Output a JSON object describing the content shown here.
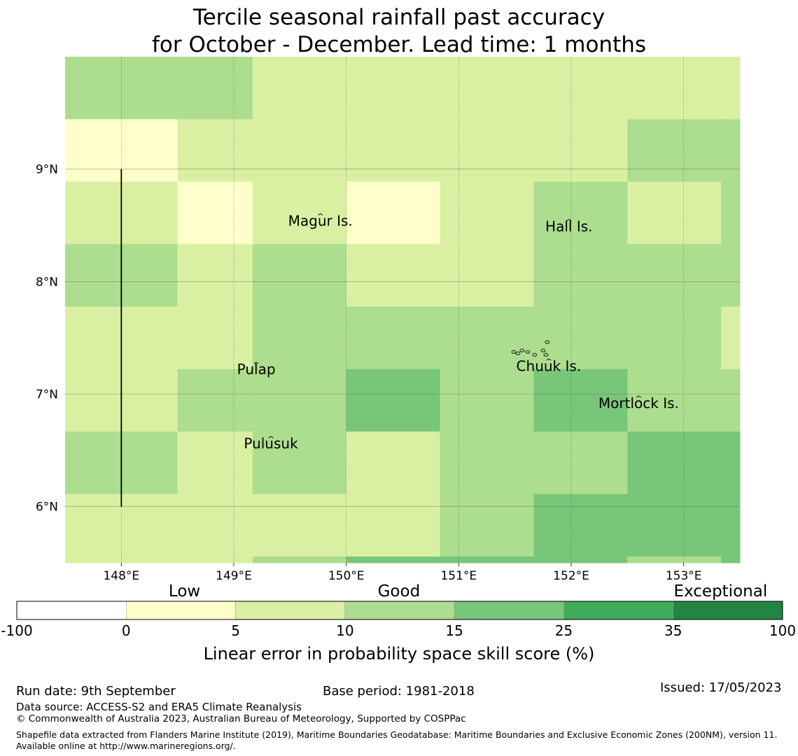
{
  "title": {
    "line1": "Tercile seasonal rainfall past accuracy",
    "line2": "for October - December. Lead time: 1 months"
  },
  "map": {
    "lon_range": [
      147.5,
      153.5
    ],
    "lat_range": [
      5.5,
      10.0
    ],
    "x_ticks": [
      {
        "value": 148,
        "label": "148°E"
      },
      {
        "value": 149,
        "label": "149°E"
      },
      {
        "value": 150,
        "label": "150°E"
      },
      {
        "value": 151,
        "label": "151°E"
      },
      {
        "value": 152,
        "label": "152°E"
      },
      {
        "value": 153,
        "label": "153°E"
      }
    ],
    "y_ticks": [
      {
        "value": 9,
        "label": "9°N"
      },
      {
        "value": 8,
        "label": "8°N"
      },
      {
        "value": 7,
        "label": "7°N"
      },
      {
        "value": 6,
        "label": "6°N"
      }
    ],
    "grid": true,
    "grid_color": "#555555",
    "col_edges": [
      147.5,
      147.667,
      148.5,
      149.167,
      150.0,
      150.833,
      151.667,
      152.5,
      153.333,
      153.5
    ],
    "row_edges": [
      10.0,
      9.444,
      8.889,
      8.333,
      7.778,
      7.222,
      6.667,
      6.111,
      5.556,
      5.5
    ],
    "cells": [
      [
        "10-15",
        "10-15",
        "10-15",
        "5-10",
        "5-10",
        "5-10",
        "5-10",
        "5-10",
        "5-10"
      ],
      [
        "0-5",
        "0-5",
        "5-10",
        "5-10",
        "5-10",
        "5-10",
        "5-10",
        "10-15",
        "10-15"
      ],
      [
        "5-10",
        "5-10",
        "0-5",
        "5-10",
        "0-5",
        "5-10",
        "10-15",
        "5-10",
        "10-15"
      ],
      [
        "10-15",
        "10-15",
        "5-10",
        "10-15",
        "5-10",
        "5-10",
        "10-15",
        "10-15",
        "10-15"
      ],
      [
        "5-10",
        "5-10",
        "5-10",
        "10-15",
        "10-15",
        "10-15",
        "10-15",
        "10-15",
        "5-10"
      ],
      [
        "5-10",
        "5-10",
        "10-15",
        "10-15",
        "15-25",
        "10-15",
        "15-25",
        "10-15",
        "10-15"
      ],
      [
        "10-15",
        "10-15",
        "5-10",
        "10-15",
        "5-10",
        "10-15",
        "10-15",
        "15-25",
        "15-25"
      ],
      [
        "5-10",
        "5-10",
        "5-10",
        "5-10",
        "5-10",
        "10-15",
        "15-25",
        "15-25",
        "15-25"
      ],
      [
        "5-10",
        "5-10",
        "5-10",
        "10-15",
        "15-25",
        "15-25",
        "15-25",
        "10-15",
        "15-25"
      ]
    ],
    "boundary_line": {
      "lon": 148.0,
      "lat_from": 6.0,
      "lat_to": 9.0,
      "color": "#000000"
    },
    "islands": [
      {
        "name": "Magur Is.",
        "lon": 149.77,
        "lat": 8.54
      },
      {
        "name": "Hall Is.",
        "lon": 151.98,
        "lat": 8.49
      },
      {
        "name": "Pulap",
        "lon": 149.2,
        "lat": 7.22
      },
      {
        "name": "Chuuk Is.",
        "lon": 151.8,
        "lat": 7.25
      },
      {
        "name": "Mortlock Is.",
        "lon": 152.6,
        "lat": 6.92
      },
      {
        "name": "Pulusuk",
        "lon": 149.33,
        "lat": 6.56
      }
    ]
  },
  "legend": {
    "categories": [
      {
        "label": "Low",
        "position": 0.219
      },
      {
        "label": "Good",
        "position": 0.499
      },
      {
        "label": "Exceptional",
        "position": 0.919
      }
    ],
    "bins": [
      {
        "id": "-100-0",
        "from": -100,
        "to": 0,
        "color": "#ffffff"
      },
      {
        "id": "0-5",
        "from": 0,
        "to": 5,
        "color": "#ffffcc"
      },
      {
        "id": "5-10",
        "from": 5,
        "to": 10,
        "color": "#d9f0a3"
      },
      {
        "id": "10-15",
        "from": 10,
        "to": 15,
        "color": "#addd8e"
      },
      {
        "id": "15-25",
        "from": 15,
        "to": 25,
        "color": "#78c679"
      },
      {
        "id": "25-35",
        "from": 25,
        "to": 35,
        "color": "#41ab5d"
      },
      {
        "id": "35-100",
        "from": 35,
        "to": 100,
        "color": "#238443"
      }
    ],
    "tick_labels": [
      "-100",
      "0",
      "5",
      "10",
      "15",
      "25",
      "35",
      "100"
    ],
    "title": "Linear error in probability space skill score (%)"
  },
  "footer": {
    "run_date": "Run date: 9th September",
    "base_period": "Base period: 1981-2018",
    "issued": "Issued: 17/05/2023",
    "data_source": "Data source: ACCESS-S2 and ERA5 Climate Reanalysis",
    "copyright": "© Commonwealth of Australia 2023, Australian Bureau of Meteorology, Supported by COSPPac",
    "shapefile": "Shapefile data extracted from Flanders Marine Institute (2019), Maritime Boundaries Geodatabase: Maritime Boundaries and Exclusive Economic Zones (200NM), version 11. Available online at http://www.marineregions.org/."
  }
}
